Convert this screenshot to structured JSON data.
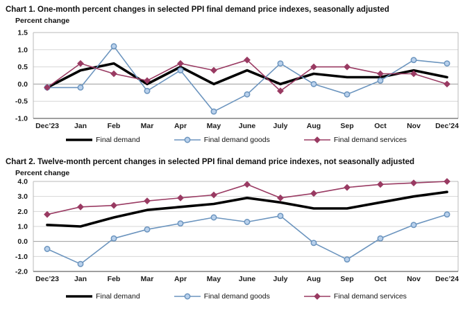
{
  "page_background": "#ffffff",
  "styles": {
    "grid_color": "#d6d6d6",
    "zero_line_color": "#9b9b9b",
    "frame_color": "#b9b9b9",
    "axis_bottom_color": "#666666",
    "tick_label_color": "#1a1a1a"
  },
  "chart_data": [
    {
      "type": "line",
      "title": "Chart 1. One-month percent changes in selected PPI final demand price indexes, seasonally adjusted",
      "ylabel": "Percent change",
      "categories": [
        "Dec’23",
        "Jan",
        "Feb",
        "Mar",
        "Apr",
        "May",
        "June",
        "July",
        "Aug",
        "Sep",
        "Oct",
        "Nov",
        "Dec’24"
      ],
      "ylim": [
        -1.0,
        1.5
      ],
      "yticks": [
        1.5,
        1.0,
        0.5,
        0.0,
        -0.5,
        -1.0
      ],
      "ytick_labels": [
        "1.5",
        "1.0",
        "0.5",
        "0.0",
        "-0.5",
        "-1.0"
      ],
      "grid": true,
      "legend_position": "bottom",
      "series": [
        {
          "name": "Final demand",
          "color": "#000000",
          "line_width": 3.6,
          "marker": "none",
          "marker_fill": "#000000",
          "values": [
            -0.1,
            0.4,
            0.6,
            0.0,
            0.5,
            0.0,
            0.4,
            0.0,
            0.3,
            0.2,
            0.2,
            0.4,
            0.2
          ]
        },
        {
          "name": "Final demand goods",
          "color": "#6b94be",
          "line_width": 1.6,
          "marker": "circle",
          "marker_fill": "#b9d1ec",
          "values": [
            -0.1,
            -0.1,
            1.1,
            -0.2,
            0.4,
            -0.8,
            -0.3,
            0.6,
            0.0,
            -0.3,
            0.1,
            0.7,
            0.6
          ]
        },
        {
          "name": "Final demand services",
          "color": "#993a62",
          "line_width": 1.6,
          "marker": "diamond",
          "marker_fill": "#993a62",
          "values": [
            -0.1,
            0.6,
            0.3,
            0.1,
            0.6,
            0.4,
            0.7,
            -0.2,
            0.5,
            0.5,
            0.3,
            0.3,
            0.0
          ]
        }
      ]
    },
    {
      "type": "line",
      "title": "Chart 2. Twelve-month percent changes in selected PPI final demand price indexes, not seasonally adjusted",
      "ylabel": "Percent change",
      "categories": [
        "Dec’23",
        "Jan",
        "Feb",
        "Mar",
        "Apr",
        "May",
        "June",
        "July",
        "Aug",
        "Sep",
        "Oct",
        "Nov",
        "Dec’24"
      ],
      "ylim": [
        -2.0,
        4.0
      ],
      "yticks": [
        4.0,
        3.0,
        2.0,
        1.0,
        0.0,
        -1.0,
        -2.0
      ],
      "ytick_labels": [
        "4.0",
        "3.0",
        "2.0",
        "1.0",
        "0.0",
        "-1.0",
        "-2.0"
      ],
      "grid": true,
      "legend_position": "bottom",
      "series": [
        {
          "name": "Final demand",
          "color": "#000000",
          "line_width": 3.6,
          "marker": "none",
          "marker_fill": "#000000",
          "values": [
            1.1,
            1.0,
            1.6,
            2.1,
            2.3,
            2.5,
            2.9,
            2.6,
            2.2,
            2.2,
            2.6,
            3.0,
            3.3
          ]
        },
        {
          "name": "Final demand goods",
          "color": "#6b94be",
          "line_width": 1.6,
          "marker": "circle",
          "marker_fill": "#b9d1ec",
          "values": [
            -0.5,
            -1.5,
            0.2,
            0.8,
            1.2,
            1.6,
            1.3,
            1.7,
            -0.1,
            -1.2,
            0.2,
            1.1,
            1.8
          ]
        },
        {
          "name": "Final demand services",
          "color": "#993a62",
          "line_width": 1.6,
          "marker": "diamond",
          "marker_fill": "#993a62",
          "values": [
            1.8,
            2.3,
            2.4,
            2.7,
            2.9,
            3.1,
            3.8,
            2.9,
            3.2,
            3.6,
            3.8,
            3.9,
            4.0
          ]
        }
      ]
    }
  ]
}
